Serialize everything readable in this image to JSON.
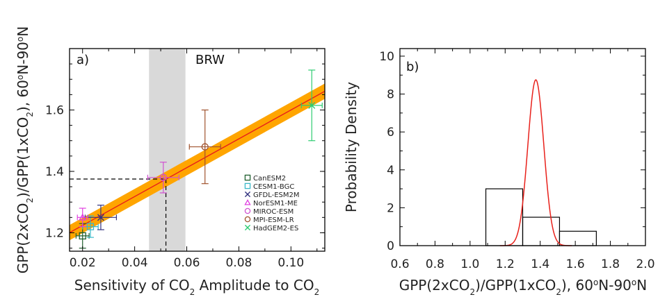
{
  "chart_data": [
    {
      "type": "scatter",
      "panel_label": "a)",
      "band_label": "BRW",
      "xlabel_parts": [
        "Sensitivity of CO",
        "2",
        " Amplitude to CO",
        "2"
      ],
      "ylabel_parts": [
        "GPP(2xCO",
        "2",
        ")/GPP(1xCO",
        "2",
        "), 60",
        "o",
        "N-90",
        "o",
        "N"
      ],
      "xlim": [
        0.015,
        0.113
      ],
      "ylim": [
        1.14,
        1.8
      ],
      "xticks": [
        0.02,
        0.04,
        0.06,
        0.08,
        0.1
      ],
      "xtick_labels": [
        "0.02",
        "0.04",
        "0.06",
        "0.08",
        "0.10"
      ],
      "yticks": [
        1.2,
        1.4,
        1.6
      ],
      "ytick_labels": [
        "1.2",
        "1.4",
        "1.6"
      ],
      "obs_band": [
        0.0455,
        0.0595
      ],
      "obs_estimate": {
        "x": 0.052,
        "y": 1.375
      },
      "regression": {
        "slope": 4.7,
        "intercept": 1.13,
        "band_halfwidth": 0.025
      },
      "colors": {
        "band": "#d9d9d9",
        "regression": "#e8201a",
        "uncertainty": "#ffa500"
      },
      "series": [
        {
          "name": "CanESM2",
          "marker": "square",
          "color": "#1f5f2e",
          "x": 0.02,
          "y": 1.19,
          "xerr": 0.0025,
          "yerr": 0.04
        },
        {
          "name": "CESM1-BGC",
          "marker": "square",
          "color": "#39b8c8",
          "x": 0.023,
          "y": 1.22,
          "xerr": 0.003,
          "yerr": 0.035
        },
        {
          "name": "GFDL-ESM2M",
          "marker": "x",
          "color": "#333380",
          "x": 0.027,
          "y": 1.25,
          "xerr": 0.006,
          "yerr": 0.04
        },
        {
          "name": "NorESM1-ME",
          "marker": "triangle",
          "color": "#e040e0",
          "x": 0.02,
          "y": 1.25,
          "xerr": 0.002,
          "yerr": 0.03
        },
        {
          "name": "MIROC-ESM",
          "marker": "circle",
          "color": "#d050d0",
          "x": 0.051,
          "y": 1.38,
          "xerr": 0.006,
          "yerr": 0.05
        },
        {
          "name": "MPI-ESM-LR",
          "marker": "circle",
          "color": "#a0522d",
          "x": 0.067,
          "y": 1.48,
          "xerr": 0.006,
          "yerr": 0.12
        },
        {
          "name": "HadGEM2-ES",
          "marker": "x",
          "color": "#2ecc71",
          "x": 0.108,
          "y": 1.615,
          "xerr": 0.004,
          "yerr": 0.115
        }
      ]
    },
    {
      "type": "histogram",
      "panel_label": "b)",
      "xlabel_parts": [
        "GPP(2xCO",
        "2",
        ")/GPP(1xCO",
        "2",
        "), 60",
        "o",
        "N-90",
        "o",
        "N"
      ],
      "ylabel": "Probability Density",
      "xlim": [
        0.6,
        2.0
      ],
      "ylim": [
        0,
        10.4
      ],
      "xticks": [
        0.6,
        0.8,
        1.0,
        1.2,
        1.4,
        1.6,
        1.8,
        2.0
      ],
      "xtick_labels": [
        "0.6",
        "0.8",
        "1.0",
        "1.2",
        "1.4",
        "1.6",
        "1.8",
        "2.0"
      ],
      "yticks": [
        0,
        2,
        4,
        6,
        8,
        10
      ],
      "ytick_labels": [
        "0",
        "2",
        "4",
        "6",
        "8",
        "10"
      ],
      "bins": [
        {
          "x0": 1.09,
          "x1": 1.3,
          "value": 3.0
        },
        {
          "x0": 1.3,
          "x1": 1.51,
          "value": 1.5
        },
        {
          "x0": 1.51,
          "x1": 1.72,
          "value": 0.76
        }
      ],
      "pdf": {
        "mean": 1.375,
        "sd": 0.0455,
        "peak": 8.75,
        "color": "#e8201a"
      }
    }
  ]
}
